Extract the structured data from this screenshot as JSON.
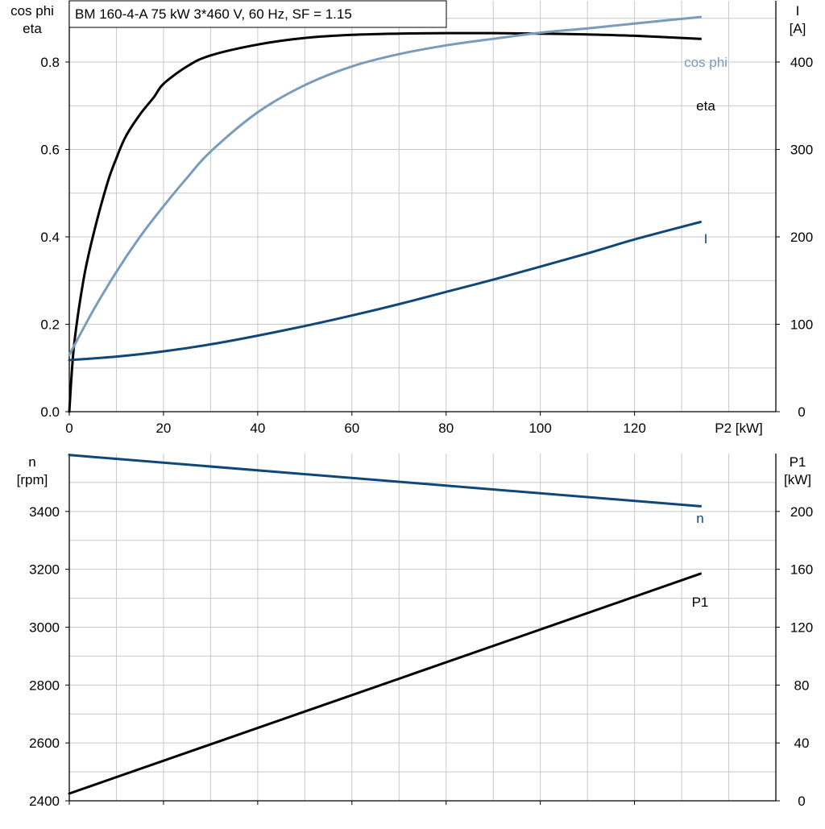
{
  "title": "BM 160-4-A   75 kW   3*460 V, 60 Hz, SF = 1.15",
  "colors": {
    "eta": "#000000",
    "cos_phi": "#7a9cbc",
    "current": "#0e4778",
    "speed": "#0e4778",
    "p1": "#000000",
    "grid": "#c8c8c8",
    "axis": "#000000"
  },
  "chart_data": [
    {
      "id": "top",
      "type": "line",
      "grid": true,
      "x": {
        "label": "P2 [kW]",
        "range": [
          0,
          150
        ],
        "ticks": [
          0,
          20,
          40,
          60,
          80,
          100,
          120
        ]
      },
      "y_left": {
        "label_lines": [
          "cos phi",
          "eta"
        ],
        "range": [
          0,
          0.94
        ],
        "ticks": [
          0.0,
          0.2,
          0.4,
          0.6,
          0.8
        ],
        "tick_labels": [
          "0.0",
          "0.2",
          "0.4",
          "0.6",
          "0.8"
        ]
      },
      "y_right": {
        "label_lines": [
          "I",
          "[A]"
        ],
        "range": [
          0,
          470
        ],
        "ticks": [
          0,
          100,
          200,
          300,
          400
        ],
        "tick_labels": [
          "0",
          "100",
          "200",
          "300",
          "400"
        ]
      },
      "series": [
        {
          "name": "eta",
          "axis": "left",
          "color_key": "eta",
          "x": [
            0,
            1,
            3,
            5,
            8,
            10,
            12,
            15,
            18,
            20,
            25,
            30,
            40,
            50,
            60,
            70,
            80,
            90,
            100,
            110,
            120,
            134
          ],
          "y": [
            0,
            0.15,
            0.3,
            0.4,
            0.52,
            0.58,
            0.63,
            0.68,
            0.72,
            0.75,
            0.79,
            0.815,
            0.84,
            0.855,
            0.862,
            0.865,
            0.866,
            0.866,
            0.865,
            0.863,
            0.86,
            0.853
          ]
        },
        {
          "name": "cos phi",
          "axis": "left",
          "color_key": "cos_phi",
          "x": [
            0,
            5,
            10,
            15,
            20,
            25,
            30,
            40,
            50,
            60,
            70,
            80,
            90,
            100,
            110,
            120,
            134
          ],
          "y": [
            0.13,
            0.23,
            0.32,
            0.4,
            0.47,
            0.535,
            0.595,
            0.685,
            0.747,
            0.79,
            0.818,
            0.838,
            0.853,
            0.867,
            0.877,
            0.888,
            0.903
          ]
        },
        {
          "name": "I",
          "axis": "right",
          "color_key": "current",
          "x": [
            0,
            10,
            20,
            30,
            40,
            50,
            60,
            70,
            80,
            90,
            100,
            110,
            120,
            134
          ],
          "y": [
            59,
            63,
            69,
            77,
            87,
            98,
            110,
            123,
            137,
            151,
            166,
            181,
            197,
            217
          ]
        }
      ]
    },
    {
      "id": "bottom",
      "type": "line",
      "grid": true,
      "x": {
        "range": [
          0,
          150
        ],
        "ticks": [
          0,
          20,
          40,
          60,
          80,
          100,
          120
        ]
      },
      "y_left": {
        "label_lines": [
          "n",
          "[rpm]"
        ],
        "range": [
          2400,
          3600
        ],
        "ticks": [
          2400,
          2600,
          2800,
          3000,
          3200,
          3400
        ],
        "tick_labels": [
          "2400",
          "2600",
          "2800",
          "3000",
          "3200",
          "3400"
        ]
      },
      "y_right": {
        "label_lines": [
          "P1",
          "[kW]"
        ],
        "range": [
          0,
          240
        ],
        "ticks": [
          0,
          40,
          80,
          120,
          160,
          200
        ],
        "tick_labels": [
          "0",
          "40",
          "80",
          "120",
          "160",
          "200"
        ]
      },
      "series": [
        {
          "name": "n",
          "axis": "left",
          "color_key": "speed",
          "x": [
            0,
            134
          ],
          "y": [
            3595,
            3418
          ]
        },
        {
          "name": "P1",
          "axis": "right",
          "color_key": "p1",
          "x": [
            0,
            134
          ],
          "y": [
            5,
            157
          ]
        }
      ]
    }
  ]
}
